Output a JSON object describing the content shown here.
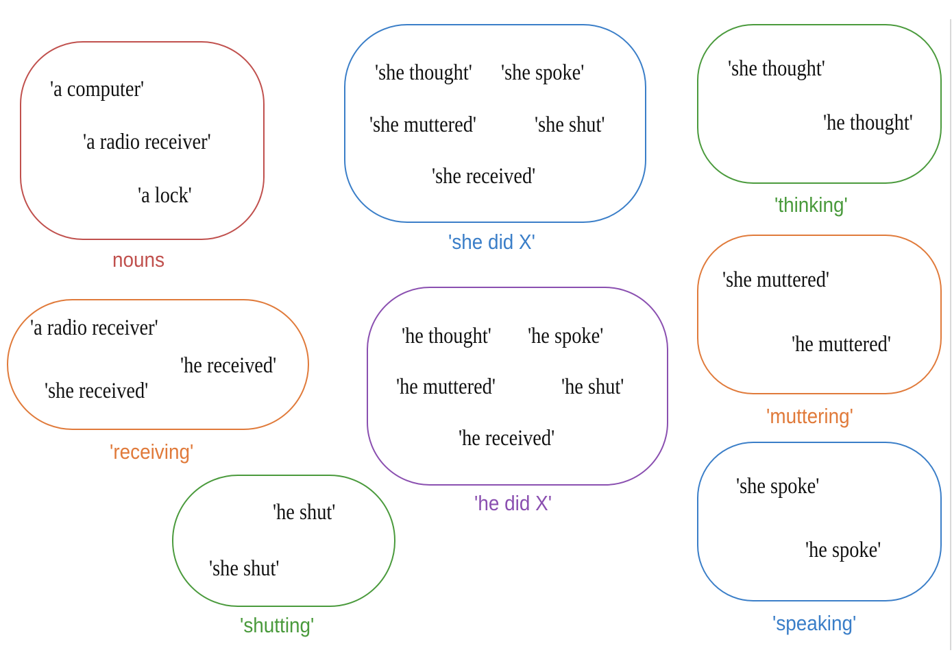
{
  "colors": {
    "nouns": "#c0504d",
    "she_did": "#3a7ec8",
    "thinking": "#4a9a3c",
    "receiving": "#e07a3a",
    "he_did": "#8a4fb0",
    "muttering": "#e07a3a",
    "shutting": "#4a9a3c",
    "speaking": "#3a7ec8",
    "text": "#111111"
  },
  "groups": {
    "nouns": {
      "label": "nouns",
      "items": [
        "'a computer'",
        "'a radio receiver'",
        "'a lock'"
      ]
    },
    "she_did": {
      "label": "'she did X'",
      "items": [
        "'she thought'",
        "'she spoke'",
        "'she muttered'",
        "'she shut'",
        "'she received'"
      ]
    },
    "thinking": {
      "label": "'thinking'",
      "items": [
        "'she thought'",
        "'he thought'"
      ]
    },
    "receiving": {
      "label": "'receiving'",
      "items": [
        "'a radio receiver'",
        "'he received'",
        "'she received'"
      ]
    },
    "he_did": {
      "label": "'he did X'",
      "items": [
        "'he thought'",
        "'he spoke'",
        "'he muttered'",
        "'he shut'",
        "'he received'"
      ]
    },
    "muttering": {
      "label": "'muttering'",
      "items": [
        "'she muttered'",
        "'he muttered'"
      ]
    },
    "shutting": {
      "label": "'shutting'",
      "items": [
        "'he shut'",
        "'she shut'"
      ]
    },
    "speaking": {
      "label": "'speaking'",
      "items": [
        "'she spoke'",
        "'he spoke'"
      ]
    }
  }
}
